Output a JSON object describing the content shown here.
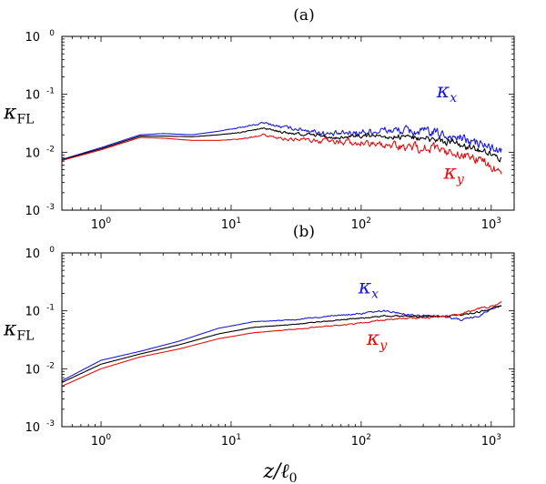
{
  "chart_data": [
    {
      "type": "line",
      "panel": "(a)",
      "xscale": "log",
      "yscale": "log",
      "xlim": [
        0.5,
        1500
      ],
      "ylim": [
        0.001,
        1
      ],
      "x_ticks": [
        1,
        10,
        100,
        1000
      ],
      "x_tick_labels": [
        {
          "base": "10",
          "exp": "0"
        },
        {
          "base": "10",
          "exp": "1"
        },
        {
          "base": "10",
          "exp": "2"
        },
        {
          "base": "10",
          "exp": "3"
        }
      ],
      "y_ticks": [
        0.001,
        0.01,
        0.1,
        1
      ],
      "y_tick_labels": [
        {
          "base": "10",
          "exp": "-3"
        },
        {
          "base": "10",
          "exp": "-2"
        },
        {
          "base": "10",
          "exp": "-1"
        },
        {
          "base": "10",
          "exp": "0"
        }
      ],
      "ylabel": {
        "main": "κ",
        "sub": "FL"
      },
      "xlabel": {
        "main": "",
        "sub": ""
      },
      "annotations": [
        {
          "main": "κ",
          "sub": "x",
          "color": "#1a1ad6",
          "x": 380,
          "y": 0.088
        },
        {
          "main": "κ",
          "sub": "y",
          "color": "#e01010",
          "x": 430,
          "y": 0.0035
        }
      ],
      "series": [
        {
          "color": "#1a1ad6",
          "noise": 0.32,
          "points": [
            [
              0.5,
              0.0075
            ],
            [
              1,
              0.012
            ],
            [
              2,
              0.02
            ],
            [
              3,
              0.021
            ],
            [
              5,
              0.02
            ],
            [
              8,
              0.023
            ],
            [
              12,
              0.027
            ],
            [
              18,
              0.032
            ],
            [
              25,
              0.027
            ],
            [
              40,
              0.024
            ],
            [
              60,
              0.02
            ],
            [
              90,
              0.022
            ],
            [
              150,
              0.024
            ],
            [
              250,
              0.023
            ],
            [
              400,
              0.021
            ],
            [
              600,
              0.017
            ],
            [
              800,
              0.014
            ],
            [
              1000,
              0.012
            ],
            [
              1200,
              0.01
            ]
          ]
        },
        {
          "color": "#000000",
          "noise": 0.22,
          "points": [
            [
              0.5,
              0.0074
            ],
            [
              1,
              0.0115
            ],
            [
              2,
              0.019
            ],
            [
              3,
              0.019
            ],
            [
              5,
              0.0185
            ],
            [
              8,
              0.02
            ],
            [
              12,
              0.022
            ],
            [
              18,
              0.026
            ],
            [
              25,
              0.022
            ],
            [
              40,
              0.02
            ],
            [
              60,
              0.018
            ],
            [
              90,
              0.019
            ],
            [
              150,
              0.019
            ],
            [
              250,
              0.018
            ],
            [
              400,
              0.016
            ],
            [
              600,
              0.013
            ],
            [
              800,
              0.011
            ],
            [
              1000,
              0.009
            ],
            [
              1200,
              0.0075
            ]
          ]
        },
        {
          "color": "#e01010",
          "noise": 0.3,
          "points": [
            [
              0.5,
              0.0072
            ],
            [
              1,
              0.011
            ],
            [
              2,
              0.018
            ],
            [
              3,
              0.0175
            ],
            [
              5,
              0.016
            ],
            [
              8,
              0.016
            ],
            [
              12,
              0.017
            ],
            [
              18,
              0.02
            ],
            [
              25,
              0.017
            ],
            [
              40,
              0.016
            ],
            [
              60,
              0.015
            ],
            [
              90,
              0.015
            ],
            [
              150,
              0.013
            ],
            [
              250,
              0.012
            ],
            [
              400,
              0.011
            ],
            [
              600,
              0.009
            ],
            [
              800,
              0.0075
            ],
            [
              1000,
              0.006
            ],
            [
              1200,
              0.004
            ]
          ]
        }
      ]
    },
    {
      "type": "line",
      "panel": "(b)",
      "xscale": "log",
      "yscale": "log",
      "xlim": [
        0.5,
        1500
      ],
      "ylim": [
        0.001,
        1
      ],
      "x_ticks": [
        1,
        10,
        100,
        1000
      ],
      "x_tick_labels": [
        {
          "base": "10",
          "exp": "0"
        },
        {
          "base": "10",
          "exp": "1"
        },
        {
          "base": "10",
          "exp": "2"
        },
        {
          "base": "10",
          "exp": "3"
        }
      ],
      "y_ticks": [
        0.001,
        0.01,
        0.1,
        1
      ],
      "y_tick_labels": [
        {
          "base": "10",
          "exp": "-3"
        },
        {
          "base": "10",
          "exp": "-2"
        },
        {
          "base": "10",
          "exp": "-1"
        },
        {
          "base": "10",
          "exp": "0"
        }
      ],
      "ylabel": {
        "main": "κ",
        "sub": "FL"
      },
      "xlabel": {
        "main": "z/ℓ",
        "sub": "0"
      },
      "annotations": [
        {
          "main": "κ",
          "sub": "x",
          "color": "#1a1ad6",
          "x": 95,
          "y": 0.2
        },
        {
          "main": "κ",
          "sub": "y",
          "color": "#e01010",
          "x": 110,
          "y": 0.026
        }
      ],
      "series": [
        {
          "color": "#1a1ad6",
          "noise": 0.06,
          "points": [
            [
              0.5,
              0.0062
            ],
            [
              1,
              0.014
            ],
            [
              2,
              0.02
            ],
            [
              4,
              0.03
            ],
            [
              8,
              0.05
            ],
            [
              15,
              0.065
            ],
            [
              30,
              0.07
            ],
            [
              60,
              0.082
            ],
            [
              100,
              0.09
            ],
            [
              150,
              0.1
            ],
            [
              250,
              0.085
            ],
            [
              400,
              0.08
            ],
            [
              600,
              0.07
            ],
            [
              800,
              0.08
            ],
            [
              1000,
              0.11
            ],
            [
              1200,
              0.12
            ]
          ]
        },
        {
          "color": "#000000",
          "noise": 0.05,
          "points": [
            [
              0.5,
              0.0058
            ],
            [
              1,
              0.012
            ],
            [
              2,
              0.018
            ],
            [
              4,
              0.026
            ],
            [
              8,
              0.04
            ],
            [
              15,
              0.052
            ],
            [
              30,
              0.058
            ],
            [
              60,
              0.068
            ],
            [
              100,
              0.075
            ],
            [
              150,
              0.082
            ],
            [
              250,
              0.08
            ],
            [
              400,
              0.082
            ],
            [
              600,
              0.085
            ],
            [
              800,
              0.095
            ],
            [
              1000,
              0.11
            ],
            [
              1200,
              0.125
            ]
          ]
        },
        {
          "color": "#e01010",
          "noise": 0.06,
          "points": [
            [
              0.5,
              0.005
            ],
            [
              1,
              0.01
            ],
            [
              2,
              0.016
            ],
            [
              4,
              0.022
            ],
            [
              8,
              0.033
            ],
            [
              15,
              0.042
            ],
            [
              30,
              0.048
            ],
            [
              60,
              0.055
            ],
            [
              100,
              0.062
            ],
            [
              150,
              0.07
            ],
            [
              250,
              0.075
            ],
            [
              400,
              0.078
            ],
            [
              600,
              0.09
            ],
            [
              800,
              0.11
            ],
            [
              1000,
              0.12
            ],
            [
              1200,
              0.14
            ]
          ]
        }
      ]
    }
  ]
}
